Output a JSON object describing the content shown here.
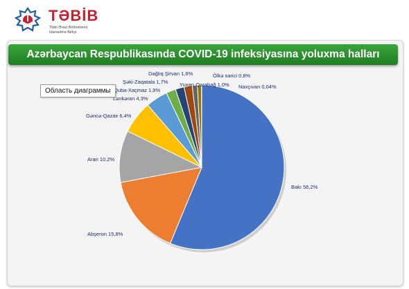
{
  "logo": {
    "name": "TƏBİB",
    "sub1": "Tibbi Ərazi Bölmələrini",
    "sub2": "İdarəetmə Birliyi"
  },
  "colors": {
    "title_bar": "#2e9a31",
    "title_text": "#ffffff",
    "label_text": "#1a2a6e"
  },
  "tooltip": "Область диаграммы",
  "chart_data": {
    "type": "pie",
    "title": "Azərbaycan Respublikasında COVID-19 infeksiyasına yoluxma halları",
    "unit": "%",
    "slices": [
      {
        "name": "Bakı",
        "label": "Bakı  56,2%",
        "value": 56.2,
        "color": "#4472c4"
      },
      {
        "name": "Abşeron",
        "label": "Abşeron 15,8%",
        "value": 15.8,
        "color": "#ed7d31"
      },
      {
        "name": "Aran",
        "label": "Aran 10,2%",
        "value": 10.2,
        "color": "#a5a5a5"
      },
      {
        "name": "Gəncə-Qazax",
        "label": "Gəncə-Qazax 6,4%",
        "value": 6.4,
        "color": "#ffc000"
      },
      {
        "name": "Lənkəran",
        "label": "Lənkəran 4,3%",
        "value": 4.3,
        "color": "#5b9bd5"
      },
      {
        "name": "Quba-Xaçmaz",
        "label": "Quba-Xaçmaz 1,9%",
        "value": 1.9,
        "color": "#70ad47"
      },
      {
        "name": "Şəki-Zaqatala",
        "label": "Şəki-Zaqatala 1,7%",
        "value": 1.7,
        "color": "#264478"
      },
      {
        "name": "Dağlıq Şirvan",
        "label": "Dağlıq Şirvan 1,6%",
        "value": 1.6,
        "color": "#9e480e"
      },
      {
        "name": "Yuxarı Qarabağ",
        "label": "Yuxarı Qarabağ 1,0%",
        "value": 1.0,
        "color": "#636363"
      },
      {
        "name": "Ölkə xarici",
        "label": "Ölkə xarici 0,8%",
        "value": 0.8,
        "color": "#997300"
      },
      {
        "name": "Naxçıvan",
        "label": "Naxçıvan 0,04%",
        "value": 0.04,
        "color": "#255e91"
      }
    ]
  }
}
